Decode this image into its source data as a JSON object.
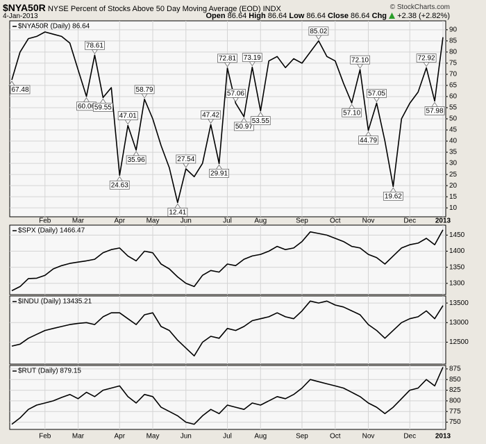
{
  "header": {
    "symbol": "$NYA50R",
    "title": "NYSE Percent of Stocks Above 50 Day Moving Average (EOD) INDX",
    "date": "4-Jan-2013",
    "copyright": "© StockCharts.com",
    "quote": [
      {
        "label": "Open",
        "value": "86.64"
      },
      {
        "label": "High",
        "value": "86.64"
      },
      {
        "label": "Low",
        "value": "86.64"
      },
      {
        "label": "Close",
        "value": "86.64"
      },
      {
        "label": "Chg",
        "value": "+2.38 (+2.82%)"
      }
    ]
  },
  "chart_data": [
    {
      "type": "line",
      "grid": true,
      "categories": [
        null,
        null,
        null,
        null,
        "Feb",
        null,
        null,
        null,
        "Mar",
        null,
        null,
        null,
        null,
        "Apr",
        null,
        null,
        null,
        "May",
        null,
        null,
        null,
        "Jun",
        null,
        null,
        null,
        null,
        "Jul",
        null,
        null,
        null,
        "Aug",
        null,
        null,
        null,
        null,
        "Sep",
        null,
        null,
        null,
        "Oct",
        null,
        null,
        null,
        "Nov",
        null,
        null,
        null,
        null,
        "Dec",
        null,
        null,
        null,
        "2013"
      ],
      "series": [
        {
          "name": "$NYA50R (Daily) 86.64",
          "color": "#000000",
          "values": [
            67.48,
            80,
            86,
            87,
            89,
            88,
            87,
            84,
            72,
            60.06,
            78.61,
            59.55,
            64,
            24.63,
            47.01,
            35.96,
            58.79,
            50,
            38,
            28,
            12.41,
            27.54,
            24,
            30,
            47.42,
            29.91,
            72.81,
            57.06,
            50.97,
            73.19,
            53.55,
            76,
            78,
            73,
            77,
            75,
            80,
            85.02,
            78,
            76,
            66,
            57.1,
            72.1,
            44.79,
            57.05,
            40,
            19.62,
            50,
            57,
            62,
            72.92,
            57.98,
            86.64
          ],
          "value_labels": [
            "67.48",
            null,
            null,
            null,
            null,
            null,
            null,
            null,
            null,
            "60.06",
            "78.61",
            "59.55",
            null,
            "24.63",
            "47.01",
            "35.96",
            "58.79",
            null,
            null,
            null,
            "12.41",
            "27.54",
            null,
            null,
            "47.42",
            "29.91",
            "72.81",
            "57.06",
            "50.97",
            "73.19",
            "53.55",
            null,
            null,
            null,
            null,
            null,
            null,
            "85.02",
            null,
            null,
            null,
            "57.10",
            "72.10",
            "44.79",
            "57.05",
            null,
            "19.62",
            null,
            null,
            null,
            "72.92",
            "57.98",
            null
          ]
        }
      ],
      "ylim": [
        6,
        94
      ],
      "yticks": [
        10,
        15,
        20,
        25,
        30,
        35,
        40,
        45,
        50,
        55,
        60,
        65,
        70,
        75,
        80,
        85,
        90
      ]
    },
    {
      "type": "line",
      "grid": true,
      "series": [
        {
          "name": "$SPX (Daily) 1466.47",
          "color": "#000000",
          "values": [
            1277,
            1290,
            1315,
            1316,
            1325,
            1345,
            1355,
            1362,
            1366,
            1370,
            1375,
            1395,
            1405,
            1410,
            1385,
            1370,
            1400,
            1395,
            1360,
            1345,
            1320,
            1300,
            1290,
            1325,
            1340,
            1335,
            1360,
            1355,
            1375,
            1385,
            1390,
            1400,
            1415,
            1405,
            1410,
            1430,
            1460,
            1455,
            1450,
            1440,
            1430,
            1415,
            1410,
            1390,
            1380,
            1360,
            1385,
            1410,
            1420,
            1425,
            1440,
            1420,
            1466.47
          ]
        }
      ],
      "ylim": [
        1265,
        1481
      ],
      "yticks": [
        1300,
        1350,
        1400,
        1450
      ]
    },
    {
      "type": "line",
      "grid": true,
      "series": [
        {
          "name": "$INDU (Daily) 13435.21",
          "color": "#000000",
          "values": [
            12400,
            12450,
            12600,
            12700,
            12800,
            12850,
            12900,
            12950,
            12980,
            13000,
            12950,
            13150,
            13250,
            13250,
            13100,
            12950,
            13200,
            13250,
            12900,
            12800,
            12550,
            12350,
            12150,
            12500,
            12650,
            12600,
            12850,
            12800,
            12900,
            13050,
            13100,
            13150,
            13250,
            13150,
            13100,
            13300,
            13550,
            13500,
            13550,
            13450,
            13400,
            13300,
            13200,
            12950,
            12800,
            12600,
            12800,
            13000,
            13100,
            13150,
            13300,
            13100,
            13435.21
          ]
        }
      ],
      "ylim": [
        11940,
        13680
      ],
      "yticks": [
        12500,
        13000,
        13500
      ]
    },
    {
      "type": "line",
      "grid": true,
      "categories": [
        null,
        null,
        null,
        null,
        "Feb",
        null,
        null,
        null,
        "Mar",
        null,
        null,
        null,
        null,
        "Apr",
        null,
        null,
        null,
        "May",
        null,
        null,
        null,
        "Jun",
        null,
        null,
        null,
        null,
        "Jul",
        null,
        null,
        null,
        "Aug",
        null,
        null,
        null,
        null,
        "Sep",
        null,
        null,
        null,
        "Oct",
        null,
        null,
        null,
        "Nov",
        null,
        null,
        null,
        null,
        "Dec",
        null,
        null,
        null,
        "2013"
      ],
      "series": [
        {
          "name": "$RUT (Daily) 879.15",
          "color": "#000000",
          "values": [
            745,
            760,
            780,
            790,
            795,
            800,
            808,
            815,
            805,
            820,
            810,
            825,
            830,
            835,
            810,
            795,
            815,
            810,
            785,
            775,
            765,
            750,
            745,
            765,
            780,
            770,
            790,
            785,
            780,
            795,
            790,
            800,
            810,
            805,
            815,
            830,
            850,
            845,
            840,
            835,
            830,
            820,
            810,
            795,
            785,
            770,
            785,
            805,
            825,
            830,
            850,
            835,
            879.15
          ]
        }
      ],
      "ylim": [
        733,
        883
      ],
      "yticks": [
        750,
        775,
        800,
        825,
        850,
        875
      ]
    }
  ]
}
